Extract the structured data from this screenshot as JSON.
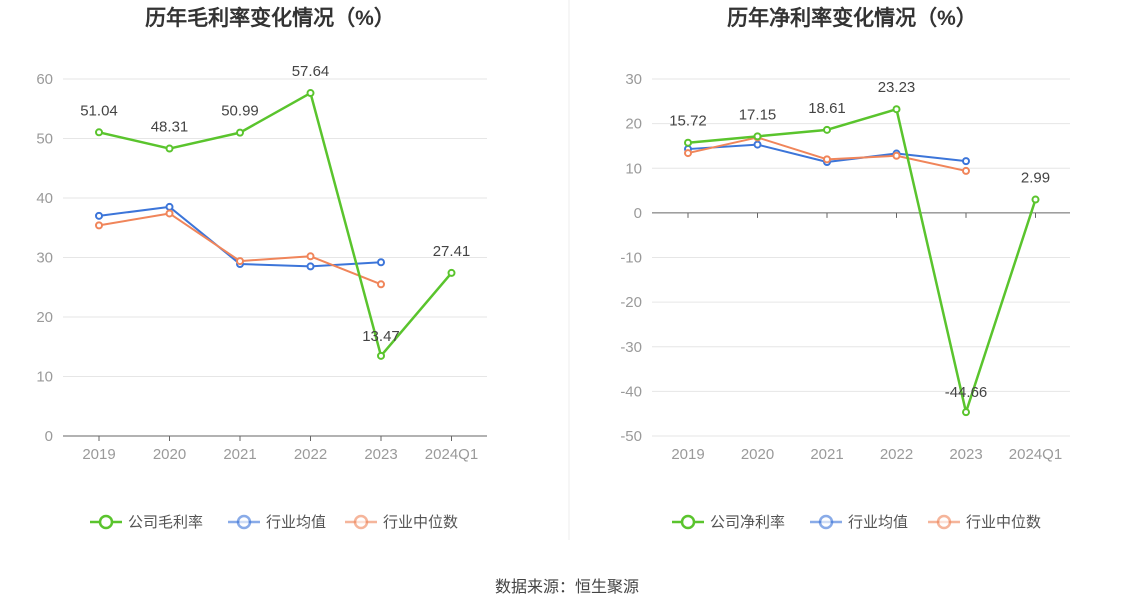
{
  "source": "数据来源：恒生聚源",
  "colors": {
    "company": "#5ac42d",
    "industry_avg": "#3c75d9",
    "industry_median": "#f0855a"
  },
  "chart_data": [
    {
      "type": "line",
      "title": "历年毛利率变化情况（%）",
      "categories": [
        "2019",
        "2020",
        "2021",
        "2022",
        "2023",
        "2024Q1"
      ],
      "ylim": [
        0,
        60
      ],
      "yticks": [
        0,
        10,
        20,
        30,
        40,
        50,
        60
      ],
      "grid": true,
      "legend_position": "bottom",
      "series": [
        {
          "name": "公司毛利率",
          "color_key": "company",
          "values": [
            51.04,
            48.31,
            50.99,
            57.64,
            13.47,
            27.41
          ],
          "labels": [
            "51.04",
            "48.31",
            "50.99",
            "57.64",
            "13.47",
            "27.41"
          ]
        },
        {
          "name": "行业均值",
          "color_key": "industry_avg",
          "values": [
            37.0,
            38.5,
            28.9,
            28.5,
            29.2,
            null
          ]
        },
        {
          "name": "行业中位数",
          "color_key": "industry_median",
          "values": [
            35.4,
            37.4,
            29.4,
            30.2,
            25.5,
            null
          ]
        }
      ]
    },
    {
      "type": "line",
      "title": "历年净利率变化情况（%）",
      "categories": [
        "2019",
        "2020",
        "2021",
        "2022",
        "2023",
        "2024Q1"
      ],
      "ylim": [
        -50,
        30
      ],
      "yticks": [
        -50,
        -40,
        -30,
        -20,
        -10,
        0,
        10,
        20,
        30
      ],
      "grid": true,
      "legend_position": "bottom",
      "series": [
        {
          "name": "公司净利率",
          "color_key": "company",
          "values": [
            15.72,
            17.15,
            18.61,
            23.23,
            -44.66,
            2.99
          ],
          "labels": [
            "15.72",
            "17.15",
            "18.61",
            "23.23",
            "-44.66",
            "2.99"
          ]
        },
        {
          "name": "行业均值",
          "color_key": "industry_avg",
          "values": [
            14.3,
            15.3,
            11.4,
            13.3,
            11.6,
            null
          ]
        },
        {
          "name": "行业中位数",
          "color_key": "industry_median",
          "values": [
            13.4,
            16.9,
            12.0,
            12.8,
            9.4,
            null
          ]
        }
      ]
    }
  ]
}
